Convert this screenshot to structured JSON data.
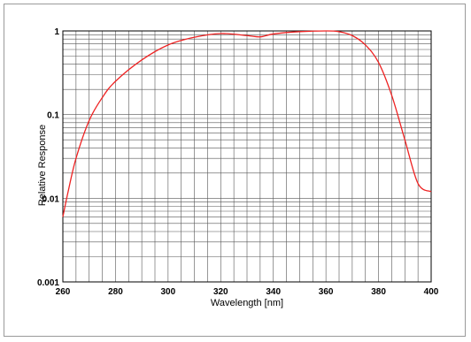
{
  "chart_data": {
    "type": "line",
    "title": "",
    "xlabel": "Wavelength [nm]",
    "ylabel": "Relative Response",
    "xlim": [
      260,
      400
    ],
    "ylim": [
      0.001,
      1
    ],
    "yscale": "log",
    "grid": true,
    "x_ticks": [
      "260",
      "280",
      "300",
      "320",
      "340",
      "360",
      "380",
      "400"
    ],
    "y_ticks": [
      "0.001",
      "0.01",
      "0.1",
      "1"
    ],
    "line_color": "#ee2222",
    "series": [
      {
        "x": [
          260,
          262,
          265,
          270,
          275,
          280,
          290,
          300,
          310,
          320,
          330,
          335,
          340,
          350,
          360,
          365,
          370,
          375,
          380,
          385,
          390,
          395,
          400
        ],
        "y": [
          0.006,
          0.012,
          0.03,
          0.085,
          0.16,
          0.25,
          0.45,
          0.68,
          0.84,
          0.93,
          0.88,
          0.85,
          0.92,
          0.98,
          1.0,
          0.98,
          0.88,
          0.68,
          0.42,
          0.17,
          0.05,
          0.015,
          0.012
        ]
      }
    ]
  }
}
